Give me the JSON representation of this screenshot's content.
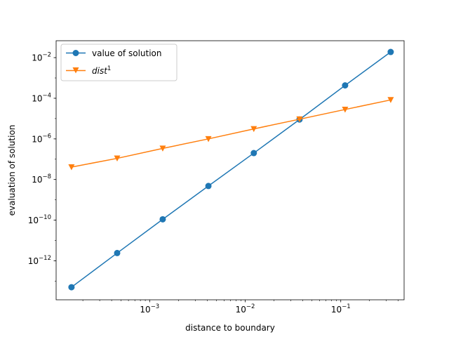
{
  "chart_data": {
    "type": "line",
    "xlabel": "distance to boundary",
    "ylabel": "evaluation of solution",
    "xscale": "log",
    "yscale": "log",
    "xlim": [
      0.000105,
      0.46
    ],
    "ylim": [
      1.2e-14,
      0.068
    ],
    "grid": false,
    "legend_position": "top-left",
    "x_ticks": [
      {
        "value": 0.001,
        "base": "10",
        "exp": "−3"
      },
      {
        "value": 0.01,
        "base": "10",
        "exp": "−2"
      },
      {
        "value": 0.1,
        "base": "10",
        "exp": "−1"
      }
    ],
    "y_ticks": [
      {
        "value": 1e-12,
        "base": "10",
        "exp": "−12"
      },
      {
        "value": 1e-10,
        "base": "10",
        "exp": "−10"
      },
      {
        "value": 1e-08,
        "base": "10",
        "exp": "−8"
      },
      {
        "value": 1e-06,
        "base": "10",
        "exp": "−6"
      },
      {
        "value": 0.0001,
        "base": "10",
        "exp": "−4"
      },
      {
        "value": 0.01,
        "base": "10",
        "exp": "−2"
      }
    ],
    "series": [
      {
        "name": "value of solution",
        "color": "#1f77b4",
        "marker": "circle",
        "x": [
          0.000152,
          0.000457,
          0.00137,
          0.00412,
          0.0123,
          0.037,
          0.111,
          0.333
        ],
        "y": [
          5e-14,
          2.4e-12,
          1.1e-10,
          4.8e-09,
          2e-07,
          9e-06,
          0.00043,
          0.019
        ]
      },
      {
        "name": "dist",
        "name_superscript": "1",
        "color": "#ff7f0e",
        "marker": "triangle-down",
        "x": [
          0.000152,
          0.000457,
          0.00137,
          0.00412,
          0.0123,
          0.037,
          0.111,
          0.333
        ],
        "y": [
          4.1e-08,
          1.1e-07,
          3.4e-07,
          1e-06,
          3.1e-06,
          9.3e-06,
          2.8e-05,
          8.3e-05
        ]
      }
    ]
  }
}
